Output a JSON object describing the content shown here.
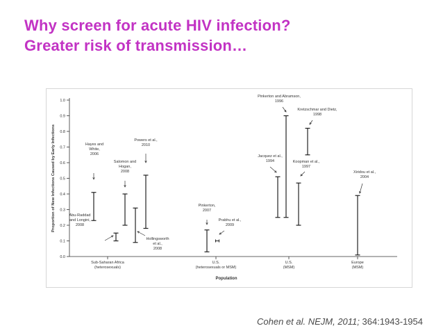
{
  "slide": {
    "title_line1": "Why screen for acute HIV infection?",
    "title_line2": "Greater risk of transmission…",
    "citation_authors": "Cohen et al. NEJM, 2011;",
    "citation_ref": " 364:1943-1954",
    "title_color": "#c233c4"
  },
  "chart_data": {
    "type": "range",
    "ylabel": "Proportion of New Infections Caused by Early Infections",
    "xlabel": "Population",
    "ylim": [
      0.0,
      1.0
    ],
    "yticks": [
      "0.0",
      "0.1",
      "0.2",
      "0.3",
      "0.4",
      "0.5",
      "0.6",
      "0.7",
      "0.8",
      "0.9",
      "1.0"
    ],
    "categories": [
      {
        "label1": "Sub-Saharan Africa",
        "label2": "(heterosexuals)"
      },
      {
        "label1": "U.S.",
        "label2": "(heterosexuals or MSM)"
      },
      {
        "label1": "U.S.",
        "label2": "(MSM)"
      },
      {
        "label1": "Europe",
        "label2": "(MSM)"
      }
    ],
    "studies": [
      {
        "lines": [
          "Hayes and",
          "White,",
          "2006"
        ],
        "low": 0.23,
        "high": 0.41,
        "category": 0
      },
      {
        "lines": [
          "Abu-Raddad",
          "and Longini,",
          "2008"
        ],
        "low": 0.1,
        "high": 0.15,
        "category": 0
      },
      {
        "lines": [
          "Salomon and",
          "Hogan,",
          "2008"
        ],
        "low": 0.2,
        "high": 0.4,
        "category": 0
      },
      {
        "lines": [
          "Hollingsworth",
          "et al.,",
          "2008"
        ],
        "low": 0.09,
        "high": 0.31,
        "category": 0
      },
      {
        "lines": [
          "Powers et al.,",
          "2010"
        ],
        "low": 0.18,
        "high": 0.52,
        "category": 0
      },
      {
        "lines": [
          "Pinkerton,",
          "2007"
        ],
        "low": 0.03,
        "high": 0.17,
        "category": 1
      },
      {
        "lines": [
          "Prabhu et al.,",
          "2009"
        ],
        "low": 0.1,
        "high": 0.11,
        "category": 1
      },
      {
        "lines": [
          "Jacquez et al.,",
          "1994"
        ],
        "low": 0.25,
        "high": 0.51,
        "category": 2
      },
      {
        "lines": [
          "Pinkerton and Abramson,",
          "1996"
        ],
        "low": 0.25,
        "high": 0.9,
        "category": 2
      },
      {
        "lines": [
          "Koopman et al.,",
          "1997"
        ],
        "low": 0.2,
        "high": 0.47,
        "category": 2
      },
      {
        "lines": [
          "Kretzschmar and Dietz,",
          "1998"
        ],
        "low": 0.65,
        "high": 0.82,
        "category": 2
      },
      {
        "lines": [
          "Xiridou et al.,",
          "2004"
        ],
        "low": 0.01,
        "high": 0.39,
        "category": 3
      }
    ]
  }
}
